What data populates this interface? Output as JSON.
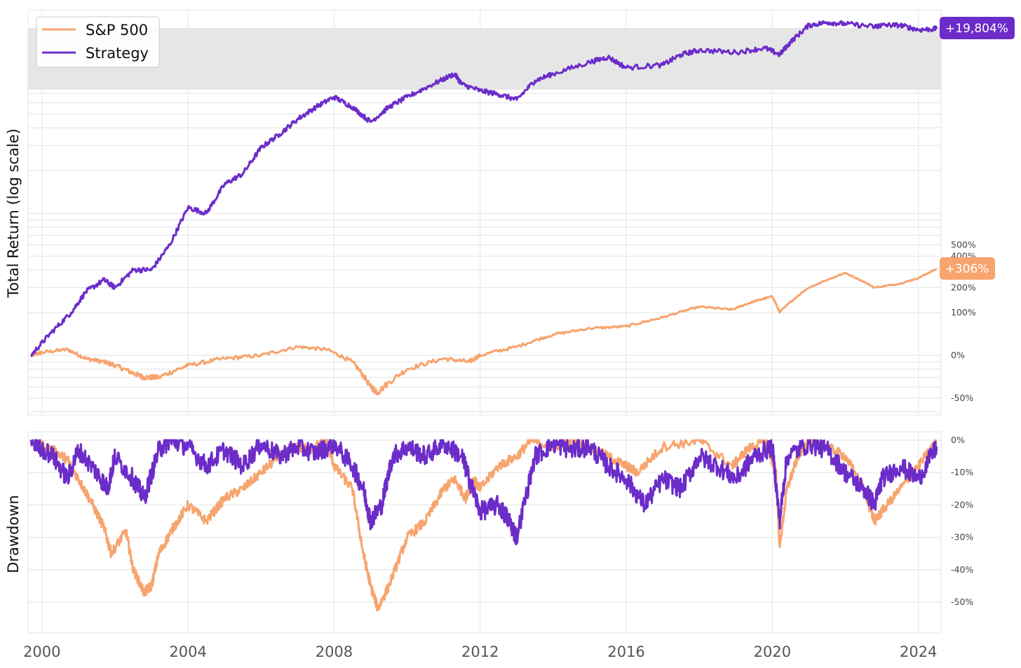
{
  "chart_data": [
    {
      "type": "line",
      "ylabel": "Total Return (log scale)",
      "yscale": "log",
      "x_ticks": [
        2000,
        2004,
        2008,
        2012,
        2016,
        2020,
        2024
      ],
      "y_ticks": [
        "500%",
        "400%",
        "200%",
        "100%",
        "0%",
        "-50%"
      ],
      "legend": {
        "placement": "top-left",
        "entries": [
          "S&P 500",
          "Strategy"
        ]
      },
      "end_labels": {
        "sp500": "+306%",
        "strategy": "+19,804%"
      },
      "series": [
        {
          "name": "S&P 500",
          "color": "#f7a46e",
          "x": [
            1999.7,
            2000.0,
            2000.7,
            2001.2,
            2001.7,
            2002.0,
            2002.5,
            2002.8,
            2003.2,
            2004.0,
            2005.0,
            2006.0,
            2007.0,
            2007.8,
            2008.5,
            2009.0,
            2009.2,
            2010.0,
            2011.0,
            2011.7,
            2012.0,
            2013.0,
            2014.0,
            2015.0,
            2016.0,
            2017.0,
            2018.0,
            2018.9,
            2019.5,
            2020.0,
            2020.2,
            2021.0,
            2022.0,
            2022.8,
            2023.5,
            2024.0,
            2024.5
          ],
          "y": [
            0,
            5,
            10,
            -5,
            -10,
            -15,
            -25,
            -30,
            -30,
            -15,
            -5,
            0,
            15,
            10,
            -10,
            -40,
            -45,
            -20,
            -5,
            -10,
            0,
            15,
            40,
            55,
            60,
            85,
            120,
            110,
            140,
            160,
            100,
            200,
            280,
            200,
            220,
            250,
            306
          ]
        },
        {
          "name": "Strategy",
          "color": "#6c2cc9",
          "x": [
            1999.7,
            2000.2,
            2000.8,
            2001.2,
            2001.7,
            2002.0,
            2002.5,
            2003.0,
            2003.5,
            2004.0,
            2004.5,
            2005.0,
            2005.5,
            2006.0,
            2006.5,
            2007.0,
            2007.5,
            2008.0,
            2008.5,
            2009.0,
            2009.5,
            2010.0,
            2010.7,
            2011.3,
            2011.5,
            2012.0,
            2012.5,
            2013.0,
            2013.5,
            2014.0,
            2015.0,
            2015.5,
            2016.0,
            2017.0,
            2017.5,
            2018.0,
            2019.0,
            2019.8,
            2020.2,
            2020.5,
            2021.0,
            2021.5,
            2022.0,
            2022.8,
            2023.0,
            2023.5,
            2024.0,
            2024.5
          ],
          "y": [
            0,
            40,
            100,
            180,
            240,
            200,
            300,
            300,
            500,
            1000,
            900,
            1500,
            1800,
            2800,
            3500,
            4500,
            5500,
            6500,
            5500,
            4300,
            5500,
            6500,
            8000,
            9500,
            8000,
            7200,
            6800,
            6200,
            8500,
            9500,
            11500,
            12500,
            10500,
            11000,
            13000,
            14000,
            13500,
            14500,
            13000,
            16000,
            21000,
            22000,
            21500,
            20500,
            21000,
            21000,
            19500,
            19804
          ]
        }
      ]
    },
    {
      "type": "line",
      "ylabel": "Drawdown",
      "x_ticks": [
        2000,
        2004,
        2008,
        2012,
        2016,
        2020,
        2024
      ],
      "y_ticks": [
        "0%",
        "-10%",
        "-20%",
        "-30%",
        "-40%",
        "-50%"
      ],
      "series": [
        {
          "name": "S&P 500",
          "color": "#f7a46e",
          "x": [
            1999.7,
            2000.3,
            2000.7,
            2001.0,
            2001.3,
            2001.7,
            2001.9,
            2002.3,
            2002.5,
            2002.8,
            2003.0,
            2003.2,
            2003.6,
            2004.0,
            2004.5,
            2005.0,
            2005.5,
            2006.0,
            2006.5,
            2007.0,
            2007.3,
            2007.8,
            2008.0,
            2008.5,
            2008.8,
            2009.0,
            2009.2,
            2009.5,
            2010.0,
            2010.5,
            2011.0,
            2011.3,
            2011.6,
            2011.8,
            2012.0,
            2012.5,
            2013.0,
            2013.4,
            2014.0,
            2014.5,
            2015.0,
            2015.5,
            2016.0,
            2016.3,
            2017.0,
            2018.0,
            2018.9,
            2019.3,
            2019.8,
            2020.1,
            2020.2,
            2020.4,
            2020.7,
            2021.0,
            2021.5,
            2022.0,
            2022.5,
            2022.8,
            2023.0,
            2023.5,
            2024.0,
            2024.5
          ],
          "y": [
            0,
            -3,
            -6,
            -12,
            -18,
            -27,
            -35,
            -28,
            -40,
            -47,
            -45,
            -35,
            -27,
            -20,
            -25,
            -18,
            -15,
            -10,
            -5,
            -2,
            -3,
            0,
            -8,
            -15,
            -35,
            -45,
            -52,
            -45,
            -30,
            -25,
            -15,
            -12,
            -18,
            -12,
            -15,
            -8,
            -5,
            0,
            -2,
            0,
            -2,
            -5,
            -8,
            -10,
            -2,
            0,
            -8,
            -3,
            0,
            -10,
            -33,
            -15,
            -5,
            0,
            -2,
            -5,
            -15,
            -25,
            -22,
            -15,
            -8,
            0
          ]
        },
        {
          "name": "Strategy",
          "color": "#6c2cc9",
          "x": [
            1999.7,
            2000.3,
            2000.7,
            2001.0,
            2001.5,
            2001.8,
            2002.0,
            2002.5,
            2002.8,
            2003.2,
            2003.5,
            2004.0,
            2004.5,
            2005.0,
            2005.5,
            2006.0,
            2006.5,
            2007.0,
            2007.5,
            2008.0,
            2008.5,
            2008.8,
            2009.0,
            2009.3,
            2009.6,
            2010.0,
            2010.5,
            2011.0,
            2011.5,
            2011.7,
            2012.0,
            2012.5,
            2012.8,
            2013.0,
            2013.5,
            2014.0,
            2014.5,
            2015.0,
            2015.5,
            2016.0,
            2016.5,
            2017.0,
            2017.5,
            2018.0,
            2018.5,
            2019.0,
            2019.5,
            2020.0,
            2020.2,
            2020.4,
            2021.0,
            2021.5,
            2022.0,
            2022.5,
            2022.8,
            2023.0,
            2023.5,
            2024.0,
            2024.5
          ],
          "y": [
            0,
            -5,
            -12,
            -3,
            -10,
            -15,
            -5,
            -12,
            -18,
            -3,
            0,
            -2,
            -8,
            -3,
            -8,
            -1,
            -5,
            -2,
            -4,
            -1,
            -8,
            -15,
            -25,
            -20,
            -5,
            -2,
            -5,
            -1,
            -5,
            -12,
            -22,
            -20,
            -25,
            -30,
            -5,
            -1,
            -3,
            -2,
            -8,
            -12,
            -20,
            -12,
            -15,
            -5,
            -8,
            -12,
            -5,
            -2,
            -25,
            -5,
            -1,
            -3,
            -10,
            -15,
            -20,
            -12,
            -8,
            -12,
            -2
          ]
        }
      ]
    }
  ]
}
